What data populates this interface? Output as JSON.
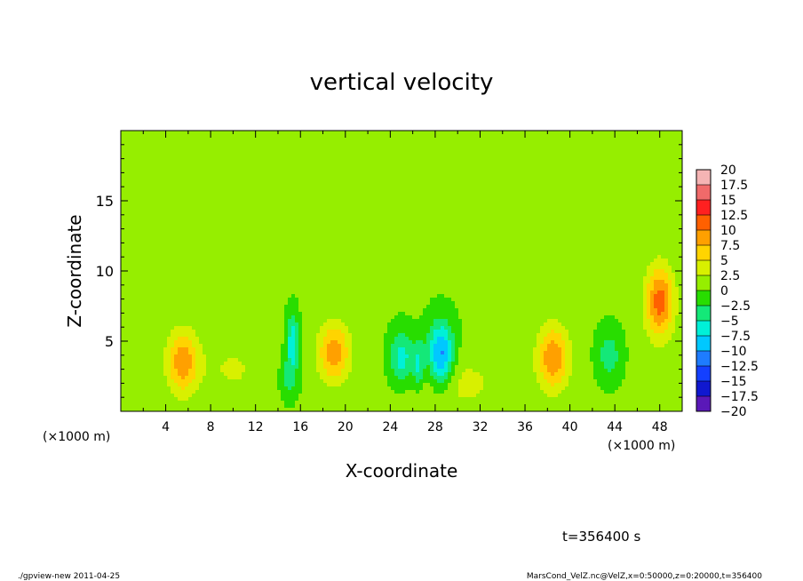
{
  "chart_data": {
    "type": "heatmap",
    "title": "vertical velocity",
    "xlabel": "X-coordinate",
    "ylabel": "Z-coordinate",
    "x_unit_left": "(×1000 m)",
    "x_unit_right": "(×1000 m)",
    "xlim": [
      0,
      50
    ],
    "ylim": [
      0,
      20
    ],
    "x_ticks": [
      4,
      8,
      12,
      16,
      20,
      24,
      28,
      32,
      36,
      40,
      44,
      48
    ],
    "y_ticks": [
      5,
      10,
      15
    ],
    "background_value": 0.3,
    "features": [
      {
        "x": 5.5,
        "z": 3.5,
        "value": 9.0,
        "sx": 1.0,
        "sz": 1.6
      },
      {
        "x": 19.0,
        "z": 4.2,
        "value": 9.0,
        "sx": 1.0,
        "sz": 1.5
      },
      {
        "x": 38.5,
        "z": 3.8,
        "value": 9.5,
        "sx": 1.0,
        "sz": 1.6
      },
      {
        "x": 48.0,
        "z": 7.8,
        "value": 11.0,
        "sx": 0.9,
        "sz": 1.8
      },
      {
        "x": 15.3,
        "z": 5.0,
        "value": -7.5,
        "sx": 0.35,
        "sz": 1.3
      },
      {
        "x": 15.0,
        "z": 2.5,
        "value": -4.0,
        "sx": 0.5,
        "sz": 1.0
      },
      {
        "x": 25.0,
        "z": 3.8,
        "value": -7.0,
        "sx": 0.7,
        "sz": 1.3
      },
      {
        "x": 26.5,
        "z": 3.3,
        "value": -6.0,
        "sx": 0.4,
        "sz": 1.2
      },
      {
        "x": 28.5,
        "z": 4.0,
        "value": -11.5,
        "sx": 0.8,
        "sz": 1.6
      },
      {
        "x": 43.5,
        "z": 4.0,
        "value": -4.5,
        "sx": 0.7,
        "sz": 1.2
      },
      {
        "x": 30.0,
        "z": 2.0,
        "value": 3.0,
        "sx": 3.0,
        "sz": 1.5
      },
      {
        "x": 10.0,
        "z": 3.0,
        "value": 2.5,
        "sx": 2.0,
        "sz": 1.5
      }
    ],
    "colorbar": {
      "levels": [
        "20",
        "17.5",
        "15",
        "12.5",
        "10",
        "7.5",
        "5",
        "2.5",
        "0",
        "-2.5",
        "-5",
        "-7.5",
        "-10",
        "-12.5",
        "-15",
        "-17.5",
        "-20"
      ],
      "band_values": [
        18.75,
        16.25,
        13.75,
        11.25,
        8.75,
        6.25,
        3.75,
        1.25,
        -1.25,
        -3.75,
        -6.25,
        -8.75,
        -11.25,
        -13.75,
        -16.25,
        -18.75
      ]
    },
    "colors": {
      "bands": [
        "#f5b4b4",
        "#f06a6a",
        "#ff2020",
        "#ff6000",
        "#ffa000",
        "#ffd400",
        "#d8f000",
        "#96ee00",
        "#28dd00",
        "#14e878",
        "#00f0d8",
        "#00c8ff",
        "#1e7cff",
        "#1440ff",
        "#1018d0",
        "#000fa0",
        "#5a18b8"
      ]
    },
    "time_label": "t=356400 s",
    "footer_left": "./gpview-new  2011-04-25",
    "footer_right": "MarsCond_VelZ.nc@VelZ,x=0:50000,z=0:20000,t=356400"
  }
}
